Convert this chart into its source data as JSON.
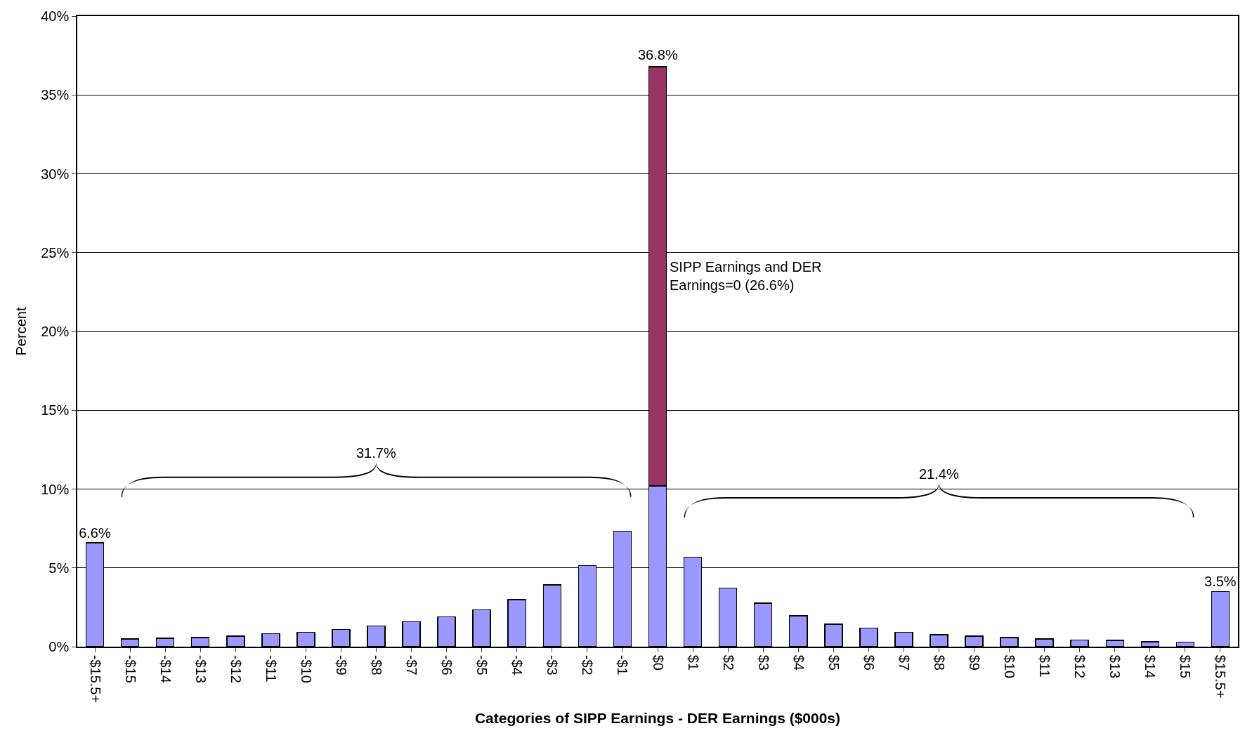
{
  "chart_data": {
    "type": "bar",
    "stacked": true,
    "xlabel": "Categories of SIPP Earnings - DER Earnings ($000s)",
    "ylabel": "Percent",
    "categories": [
      "-$15.5+",
      "-$15",
      "-$14",
      "-$13",
      "-$12",
      "-$11",
      "-$10",
      "-$9",
      "-$8",
      "-$7",
      "-$6",
      "-$5",
      "-$4",
      "-$3",
      "-$2",
      "-$1",
      "$0",
      "$1",
      "$2",
      "$3",
      "$4",
      "$5",
      "$6",
      "$7",
      "$8",
      "$9",
      "$10",
      "$11",
      "$12",
      "$13",
      "$14",
      "$15",
      "$15.5+"
    ],
    "series": [
      {
        "color": "#9999ff",
        "values": [
          6.6,
          0.48,
          0.53,
          0.58,
          0.67,
          0.82,
          0.91,
          1.1,
          1.32,
          1.59,
          1.9,
          2.33,
          2.98,
          3.92,
          5.14,
          7.33,
          10.2,
          5.67,
          3.73,
          2.76,
          1.97,
          1.42,
          1.18,
          0.91,
          0.75,
          0.67,
          0.58,
          0.48,
          0.43,
          0.41,
          0.31,
          0.29,
          3.5
        ],
        "value_labels": [
          "6.6%",
          null,
          null,
          null,
          null,
          null,
          null,
          null,
          null,
          null,
          null,
          null,
          null,
          null,
          null,
          null,
          null,
          null,
          null,
          null,
          null,
          null,
          null,
          null,
          null,
          null,
          null,
          null,
          null,
          null,
          null,
          null,
          "3.5%"
        ]
      },
      {
        "color": "#993366",
        "values": [
          null,
          null,
          null,
          null,
          null,
          null,
          null,
          null,
          null,
          null,
          null,
          null,
          null,
          null,
          null,
          null,
          26.6,
          null,
          null,
          null,
          null,
          null,
          null,
          null,
          null,
          null,
          null,
          null,
          null,
          null,
          null,
          null,
          null
        ]
      }
    ],
    "totals": [
      null,
      null,
      null,
      null,
      null,
      null,
      null,
      null,
      null,
      null,
      null,
      null,
      null,
      null,
      null,
      null,
      "36.8%",
      null,
      null,
      null,
      null,
      null,
      null,
      null,
      null,
      null,
      null,
      null,
      null,
      null,
      null,
      null,
      null
    ],
    "annotations": [
      "31.7%",
      "21.4%",
      "SIPP Earnings and DER\nEarnings=0 (26.6%)"
    ],
    "ylim": [
      0,
      40
    ],
    "yticks": [
      {
        "value": 0,
        "label": "0%"
      },
      {
        "value": 5,
        "label": "5%"
      },
      {
        "value": 10,
        "label": "10%"
      },
      {
        "value": 15,
        "label": "15%"
      },
      {
        "value": 20,
        "label": "20%"
      },
      {
        "value": 25,
        "label": "25%"
      },
      {
        "value": 30,
        "label": "30%"
      },
      {
        "value": 35,
        "label": "35%"
      },
      {
        "value": 40,
        "label": "40%"
      }
    ],
    "grid": "y"
  }
}
